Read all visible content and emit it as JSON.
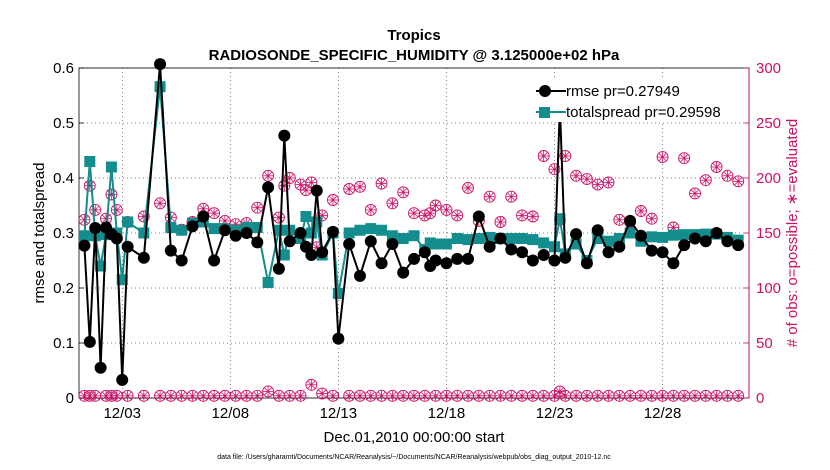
{
  "chart_data": {
    "type": "line",
    "title_line1": "Tropics",
    "title_line2": "RADIOSONDE_SPECIFIC_HUMIDITY @ 3.125000e+02 hPa",
    "xlabel": "Dec.01,2010 00:00:00 start",
    "ylabel_left": "rmse and totalspread",
    "ylabel_right": "# of obs: o=possible; ∗=evaluated",
    "footnote": "data file: /Users/gharamti/Documents/NCAR/Reanalysis/~/Documents/NCAR/Reanalysis/webpub/obs_diag_output_2010-12.nc",
    "x_tick_labels": [
      "12/03",
      "12/08",
      "12/13",
      "12/18",
      "12/23",
      "12/28"
    ],
    "x_tick_days": [
      3,
      8,
      13,
      18,
      23,
      28
    ],
    "xlim": [
      1,
      32
    ],
    "ylim_left": [
      0,
      0.6
    ],
    "y_left_ticks": [
      0,
      0.1,
      0.2,
      0.3,
      0.4,
      0.5,
      0.6
    ],
    "y_left_tick_labels": [
      "0",
      "0.1",
      "0.2",
      "0.3",
      "0.4",
      "0.5",
      "0.6"
    ],
    "ylim_right": [
      0,
      300
    ],
    "y_right_ticks": [
      0,
      50,
      100,
      150,
      200,
      250,
      300
    ],
    "y_right_tick_labels": [
      "0",
      "50",
      "100",
      "150",
      "200",
      "250",
      "300"
    ],
    "colors": {
      "rmse": "#000000",
      "totalspread": "#138d8d",
      "obs": "#cc1166",
      "axis": "#000000",
      "right_axis": "#cc1166"
    },
    "legend_position": "top-right",
    "series": [
      {
        "name": "rmse pr=0.27949",
        "points": [
          [
            1.25,
            0.277
          ],
          [
            1.5,
            0.102
          ],
          [
            1.75,
            0.309
          ],
          [
            2.0,
            0.055
          ],
          [
            2.25,
            0.31
          ],
          [
            2.5,
            0.298
          ],
          [
            2.75,
            0.29
          ],
          [
            3.0,
            0.033
          ],
          [
            3.25,
            0.275
          ],
          [
            4.0,
            0.255
          ],
          [
            4.75,
            0.607
          ],
          [
            5.25,
            0.268
          ],
          [
            5.75,
            0.25
          ],
          [
            6.25,
            0.312
          ],
          [
            6.75,
            0.33
          ],
          [
            7.25,
            0.25
          ],
          [
            7.75,
            0.305
          ],
          [
            8.25,
            0.295
          ],
          [
            8.75,
            0.3
          ],
          [
            9.25,
            0.283
          ],
          [
            9.75,
            0.383
          ],
          [
            10.25,
            0.235
          ],
          [
            10.5,
            0.477
          ],
          [
            10.75,
            0.285
          ],
          [
            11.25,
            0.3
          ],
          [
            11.5,
            0.275
          ],
          [
            11.75,
            0.26
          ],
          [
            12.0,
            0.377
          ],
          [
            12.25,
            0.265
          ],
          [
            12.75,
            0.302
          ],
          [
            13.0,
            0.108
          ],
          [
            13.5,
            0.28
          ],
          [
            14.0,
            0.222
          ],
          [
            14.5,
            0.285
          ],
          [
            15.0,
            0.245
          ],
          [
            15.5,
            0.28
          ],
          [
            16.0,
            0.228
          ],
          [
            16.5,
            0.253
          ],
          [
            17.0,
            0.265
          ],
          [
            17.25,
            0.24
          ],
          [
            17.5,
            0.25
          ],
          [
            18.0,
            0.245
          ],
          [
            18.5,
            0.253
          ],
          [
            19.0,
            0.253
          ],
          [
            19.5,
            0.33
          ],
          [
            20.0,
            0.275
          ],
          [
            20.5,
            0.29
          ],
          [
            21.0,
            0.27
          ],
          [
            21.5,
            0.265
          ],
          [
            22.0,
            0.25
          ],
          [
            22.5,
            0.26
          ],
          [
            23.0,
            0.25
          ],
          [
            23.25,
            0.53
          ],
          [
            23.5,
            0.255
          ],
          [
            24.0,
            0.298
          ],
          [
            24.5,
            0.245
          ],
          [
            25.0,
            0.305
          ],
          [
            25.5,
            0.265
          ],
          [
            26.0,
            0.275
          ],
          [
            26.5,
            0.322
          ],
          [
            27.0,
            0.295
          ],
          [
            27.5,
            0.268
          ],
          [
            28.0,
            0.265
          ],
          [
            28.5,
            0.245
          ],
          [
            29.0,
            0.278
          ],
          [
            29.5,
            0.29
          ],
          [
            30.0,
            0.285
          ],
          [
            30.5,
            0.3
          ],
          [
            31.0,
            0.285
          ],
          [
            31.5,
            0.278
          ]
        ]
      },
      {
        "name": "totalspread pr=0.29598",
        "points": [
          [
            1.25,
            0.295
          ],
          [
            1.5,
            0.43
          ],
          [
            1.75,
            0.295
          ],
          [
            2.0,
            0.24
          ],
          [
            2.25,
            0.297
          ],
          [
            2.5,
            0.42
          ],
          [
            2.75,
            0.3
          ],
          [
            3.0,
            0.215
          ],
          [
            3.25,
            0.32
          ],
          [
            4.0,
            0.3
          ],
          [
            4.75,
            0.566
          ],
          [
            5.25,
            0.31
          ],
          [
            5.75,
            0.305
          ],
          [
            6.25,
            0.318
          ],
          [
            6.75,
            0.32
          ],
          [
            7.25,
            0.308
          ],
          [
            7.75,
            0.308
          ],
          [
            8.25,
            0.305
          ],
          [
            8.75,
            0.31
          ],
          [
            9.25,
            0.31
          ],
          [
            9.75,
            0.21
          ],
          [
            10.25,
            0.305
          ],
          [
            10.5,
            0.26
          ],
          [
            10.75,
            0.305
          ],
          [
            11.25,
            0.29
          ],
          [
            11.5,
            0.33
          ],
          [
            11.75,
            0.3
          ],
          [
            12.0,
            0.32
          ],
          [
            12.25,
            0.26
          ],
          [
            12.75,
            0.3
          ],
          [
            13.0,
            0.19
          ],
          [
            13.5,
            0.3
          ],
          [
            14.0,
            0.305
          ],
          [
            14.5,
            0.308
          ],
          [
            15.0,
            0.305
          ],
          [
            15.5,
            0.295
          ],
          [
            16.0,
            0.29
          ],
          [
            16.5,
            0.295
          ],
          [
            17.0,
            0.27
          ],
          [
            17.25,
            0.282
          ],
          [
            17.5,
            0.28
          ],
          [
            18.0,
            0.28
          ],
          [
            18.5,
            0.29
          ],
          [
            19.0,
            0.288
          ],
          [
            19.5,
            0.29
          ],
          [
            20.0,
            0.292
          ],
          [
            20.5,
            0.29
          ],
          [
            21.0,
            0.29
          ],
          [
            21.5,
            0.29
          ],
          [
            22.0,
            0.288
          ],
          [
            22.5,
            0.282
          ],
          [
            23.0,
            0.275
          ],
          [
            23.25,
            0.326
          ],
          [
            23.5,
            0.262
          ],
          [
            24.0,
            0.28
          ],
          [
            24.5,
            0.25
          ],
          [
            25.0,
            0.29
          ],
          [
            25.5,
            0.285
          ],
          [
            26.0,
            0.29
          ],
          [
            26.5,
            0.3
          ],
          [
            27.0,
            0.285
          ],
          [
            27.5,
            0.293
          ],
          [
            28.0,
            0.292
          ],
          [
            28.5,
            0.296
          ],
          [
            29.0,
            0.297
          ],
          [
            29.5,
            0.297
          ],
          [
            30.0,
            0.298
          ],
          [
            30.5,
            0.298
          ],
          [
            31.0,
            0.292
          ],
          [
            31.5,
            0.287
          ]
        ]
      },
      {
        "name": "obs possible",
        "values_day": [
          1.25,
          1.5,
          1.75,
          2.25,
          2.5,
          2.75,
          3.25,
          4.0,
          4.75,
          5.25,
          5.75,
          6.25,
          6.75,
          7.25,
          7.75,
          8.25,
          8.75,
          9.25,
          9.75,
          10.25,
          10.5,
          10.75,
          11.25,
          11.5,
          11.75,
          12.0,
          12.25,
          12.75,
          13.5,
          14.0,
          14.5,
          15.0,
          15.5,
          16.0,
          16.5,
          17.0,
          17.25,
          17.5,
          18.0,
          18.5,
          19.0,
          19.5,
          20.0,
          20.5,
          21.0,
          21.5,
          22.0,
          22.5,
          23.0,
          23.25,
          23.5,
          24.0,
          24.5,
          25.0,
          25.5,
          26.0,
          26.5,
          27.0,
          27.5,
          28.0,
          28.5,
          29.0,
          29.5,
          30.0,
          30.5,
          31.0,
          31.5
        ],
        "values": [
          162,
          193,
          171,
          163,
          185,
          171,
          160,
          165,
          177,
          164,
          153,
          160,
          172,
          168,
          161,
          158,
          159,
          173,
          202,
          164,
          193,
          200,
          194,
          189,
          196,
          137,
          166,
          180,
          190,
          192,
          171,
          195,
          177,
          187,
          168,
          166,
          168,
          175,
          171,
          166,
          191,
          161,
          183,
          160,
          183,
          166,
          165,
          220,
          208,
          162,
          220,
          202,
          199,
          194,
          196,
          162,
          160,
          170,
          163,
          219,
          155,
          218,
          186,
          198,
          210,
          202,
          197
        ]
      },
      {
        "name": "obs evaluated",
        "note": "asterisks drawn at same positions as possible counts"
      }
    ],
    "obs_bottom_days": [
      1.25,
      1.5,
      1.75,
      2.25,
      2.5,
      2.75,
      3.25,
      4.0,
      4.75,
      5.25,
      5.75,
      6.25,
      6.75,
      7.25,
      7.75,
      8.25,
      8.75,
      9.25,
      9.75,
      10.25,
      10.75,
      11.25,
      11.75,
      12.25,
      12.75,
      13.5,
      14.0,
      14.5,
      15.0,
      15.5,
      16.0,
      16.5,
      17.0,
      17.5,
      18.0,
      18.5,
      19.0,
      19.5,
      20.0,
      20.5,
      21.0,
      21.5,
      22.0,
      22.5,
      23.0,
      23.25,
      23.5,
      24.0,
      24.5,
      25.0,
      25.5,
      26.0,
      26.5,
      27.0,
      27.5,
      28.0,
      28.5,
      29.0,
      29.5,
      30.0,
      30.5,
      31.0,
      31.5
    ],
    "obs_bottom_values": [
      2,
      2,
      2,
      2,
      2,
      2,
      2,
      2,
      2,
      2,
      2,
      2,
      2,
      2,
      2,
      2,
      2,
      2,
      6,
      2,
      2,
      2,
      12,
      4,
      2,
      2,
      2,
      2,
      2,
      2,
      2,
      2,
      2,
      2,
      2,
      2,
      2,
      2,
      2,
      2,
      2,
      2,
      2,
      2,
      2,
      6,
      2,
      2,
      2,
      2,
      2,
      2,
      2,
      2,
      2,
      2,
      2,
      2,
      2,
      2,
      2,
      2,
      2
    ]
  }
}
